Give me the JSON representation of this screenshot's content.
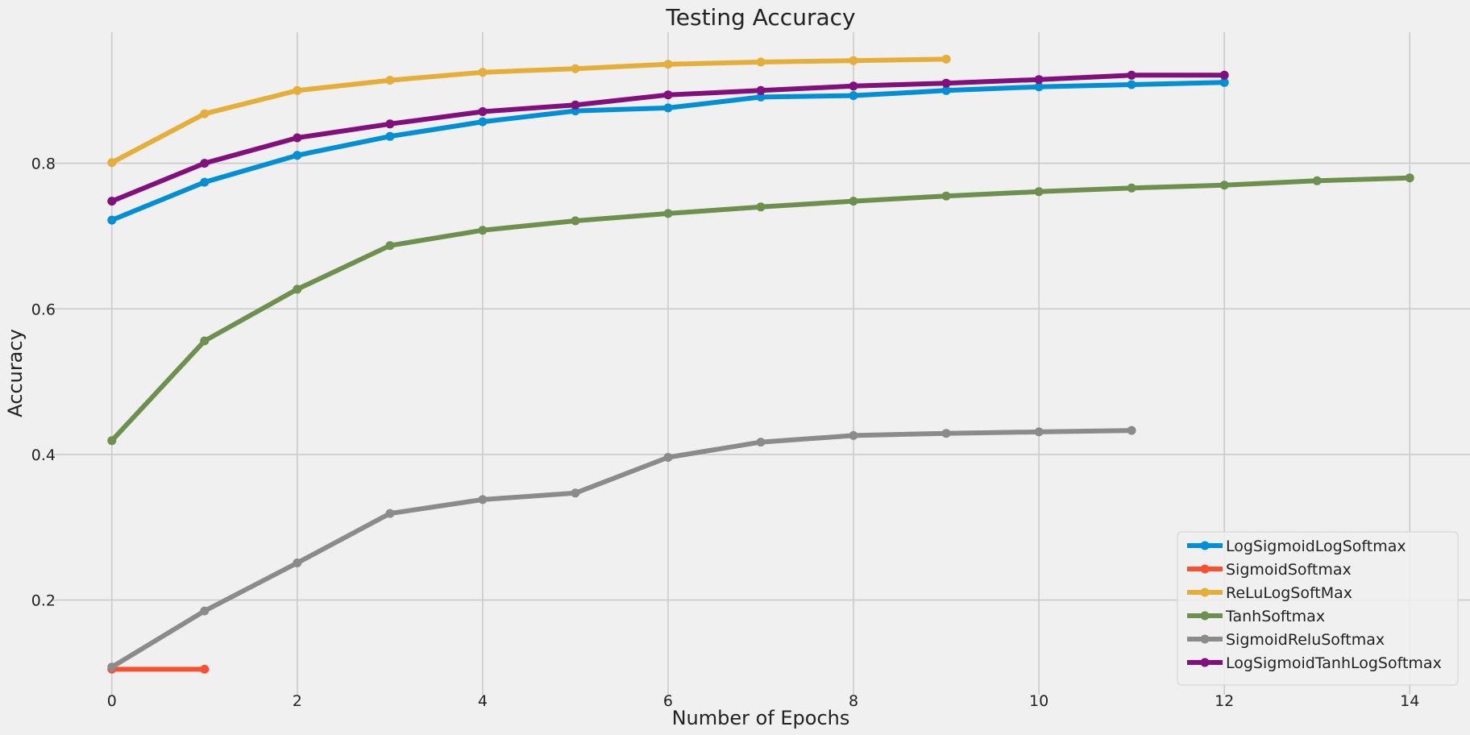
{
  "chart_data": {
    "type": "line",
    "title": "Testing Accuracy",
    "xlabel": "Number of Epochs",
    "ylabel": "Accuracy",
    "xlim": [
      -0.65,
      14.65
    ],
    "ylim": [
      0.07,
      0.98
    ],
    "x_ticks": [
      0,
      2,
      4,
      6,
      8,
      10,
      12,
      14
    ],
    "y_ticks": [
      0.2,
      0.4,
      0.6,
      0.8
    ],
    "x_tick_labels": [
      "0",
      "2",
      "4",
      "6",
      "8",
      "10",
      "12",
      "14"
    ],
    "y_tick_labels": [
      "0.2",
      "0.4",
      "0.6",
      "0.8"
    ],
    "grid": true,
    "legend_position": "lower-right",
    "background_color": "#f0f0f0",
    "grid_color": "#cbcbcb",
    "series": [
      {
        "name": "LogSigmoidLogSoftmax",
        "color": "#008fd5",
        "x": [
          0,
          1,
          2,
          3,
          4,
          5,
          6,
          7,
          8,
          9,
          10,
          11,
          12
        ],
        "y": [
          0.722,
          0.774,
          0.811,
          0.837,
          0.857,
          0.872,
          0.876,
          0.891,
          0.893,
          0.9,
          0.905,
          0.908,
          0.911
        ]
      },
      {
        "name": "SigmoidSoftmax",
        "color": "#fc4f30",
        "x": [
          0,
          1
        ],
        "y": [
          0.105,
          0.105
        ]
      },
      {
        "name": "ReLuLogSoftMax",
        "color": "#e5ae38",
        "x": [
          0,
          1,
          2,
          3,
          4,
          5,
          6,
          7,
          8,
          9
        ],
        "y": [
          0.801,
          0.868,
          0.9,
          0.914,
          0.925,
          0.93,
          0.936,
          0.939,
          0.941,
          0.943
        ]
      },
      {
        "name": "TanhSoftmax",
        "color": "#6d904f",
        "x": [
          0,
          1,
          2,
          3,
          4,
          5,
          6,
          7,
          8,
          9,
          10,
          11,
          12,
          13,
          14
        ],
        "y": [
          0.419,
          0.556,
          0.627,
          0.687,
          0.708,
          0.721,
          0.731,
          0.74,
          0.748,
          0.755,
          0.761,
          0.766,
          0.77,
          0.776,
          0.78
        ]
      },
      {
        "name": "SigmoidReluSoftmax",
        "color": "#8b8b8b",
        "x": [
          0,
          1,
          2,
          3,
          4,
          5,
          6,
          7,
          8,
          9,
          10,
          11
        ],
        "y": [
          0.108,
          0.185,
          0.251,
          0.319,
          0.338,
          0.347,
          0.396,
          0.417,
          0.426,
          0.429,
          0.431,
          0.433
        ]
      },
      {
        "name": "LogSigmoidTanhLogSoftmax",
        "color": "#810f7c",
        "x": [
          0,
          1,
          2,
          3,
          4,
          5,
          6,
          7,
          8,
          9,
          10,
          11,
          12
        ],
        "y": [
          0.748,
          0.8,
          0.835,
          0.854,
          0.871,
          0.88,
          0.894,
          0.9,
          0.906,
          0.91,
          0.915,
          0.921,
          0.921
        ]
      }
    ]
  }
}
